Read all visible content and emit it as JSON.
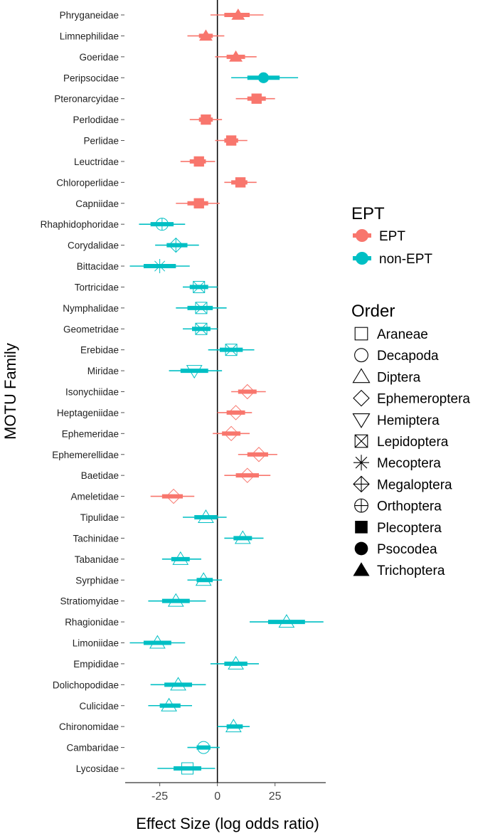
{
  "chart_data": {
    "type": "forest",
    "xlabel": "Effect Size (log odds ratio)",
    "ylabel": "MOTU Family",
    "xlim": [
      -40,
      47
    ],
    "xticks": [
      -25,
      0,
      25
    ],
    "reference_line": 0,
    "legend_position": "right",
    "legends": [
      {
        "title": "EPT",
        "entries": [
          {
            "label": "EPT",
            "color": "#F8766D"
          },
          {
            "label": "non-EPT",
            "color": "#00BFC4"
          }
        ]
      },
      {
        "title": "Order",
        "entries": [
          {
            "label": "Araneae",
            "shape": "square-open"
          },
          {
            "label": "Decapoda",
            "shape": "circle-open"
          },
          {
            "label": "Diptera",
            "shape": "triangle-open"
          },
          {
            "label": "Ephemeroptera",
            "shape": "diamond-open"
          },
          {
            "label": "Hemiptera",
            "shape": "triangle-down-open"
          },
          {
            "label": "Lepidoptera",
            "shape": "square-cross"
          },
          {
            "label": "Mecoptera",
            "shape": "asterisk"
          },
          {
            "label": "Megaloptera",
            "shape": "diamond-plus"
          },
          {
            "label": "Orthoptera",
            "shape": "circle-plus"
          },
          {
            "label": "Plecoptera",
            "shape": "square-filled"
          },
          {
            "label": "Psocodea",
            "shape": "circle-filled"
          },
          {
            "label": "Trichoptera",
            "shape": "triangle-filled"
          }
        ]
      }
    ],
    "families": [
      {
        "name": "Phryganeidae",
        "order": "Trichoptera",
        "group": "EPT",
        "est": 9,
        "lo95": -3,
        "hi95": 20,
        "lo50": 3,
        "hi50": 14
      },
      {
        "name": "Limnephilidae",
        "order": "Trichoptera",
        "group": "EPT",
        "est": -5,
        "lo95": -13,
        "hi95": 3,
        "lo50": -8,
        "hi50": -2
      },
      {
        "name": "Goeridae",
        "order": "Trichoptera",
        "group": "EPT",
        "est": 8,
        "lo95": -1,
        "hi95": 17,
        "lo50": 4,
        "hi50": 12
      },
      {
        "name": "Peripsocidae",
        "order": "Psocodea",
        "group": "non-EPT",
        "est": 20,
        "lo95": 6,
        "hi95": 35,
        "lo50": 13,
        "hi50": 27
      },
      {
        "name": "Pteronarcyidae",
        "order": "Plecoptera",
        "group": "EPT",
        "est": 17,
        "lo95": 8,
        "hi95": 25,
        "lo50": 13,
        "hi50": 21
      },
      {
        "name": "Perlodidae",
        "order": "Plecoptera",
        "group": "EPT",
        "est": -5,
        "lo95": -12,
        "hi95": 2,
        "lo50": -8,
        "hi50": -2
      },
      {
        "name": "Perlidae",
        "order": "Plecoptera",
        "group": "EPT",
        "est": 6,
        "lo95": -1,
        "hi95": 13,
        "lo50": 3,
        "hi50": 9
      },
      {
        "name": "Leuctridae",
        "order": "Plecoptera",
        "group": "EPT",
        "est": -8,
        "lo95": -16,
        "hi95": -1,
        "lo50": -12,
        "hi50": -5
      },
      {
        "name": "Chloroperlidae",
        "order": "Plecoptera",
        "group": "EPT",
        "est": 10,
        "lo95": 3,
        "hi95": 17,
        "lo50": 6,
        "hi50": 13
      },
      {
        "name": "Capniidae",
        "order": "Plecoptera",
        "group": "EPT",
        "est": -8,
        "lo95": -18,
        "hi95": 1,
        "lo50": -13,
        "hi50": -4
      },
      {
        "name": "Rhaphidophoridae",
        "order": "Orthoptera",
        "group": "non-EPT",
        "est": -24,
        "lo95": -34,
        "hi95": -14,
        "lo50": -29,
        "hi50": -19
      },
      {
        "name": "Corydalidae",
        "order": "Megaloptera",
        "group": "non-EPT",
        "est": -18,
        "lo95": -27,
        "hi95": -8,
        "lo50": -22,
        "hi50": -13
      },
      {
        "name": "Bittacidae",
        "order": "Mecoptera",
        "group": "non-EPT",
        "est": -25,
        "lo95": -38,
        "hi95": -12,
        "lo50": -32,
        "hi50": -18
      },
      {
        "name": "Tortricidae",
        "order": "Lepidoptera",
        "group": "non-EPT",
        "est": -8,
        "lo95": -15,
        "hi95": 0,
        "lo50": -12,
        "hi50": -4
      },
      {
        "name": "Nymphalidae",
        "order": "Lepidoptera",
        "group": "non-EPT",
        "est": -7,
        "lo95": -18,
        "hi95": 4,
        "lo50": -13,
        "hi50": -2
      },
      {
        "name": "Geometridae",
        "order": "Lepidoptera",
        "group": "non-EPT",
        "est": -7,
        "lo95": -15,
        "hi95": 0,
        "lo50": -11,
        "hi50": -3
      },
      {
        "name": "Erebidae",
        "order": "Lepidoptera",
        "group": "non-EPT",
        "est": 6,
        "lo95": -4,
        "hi95": 16,
        "lo50": 1,
        "hi50": 11
      },
      {
        "name": "Miridae",
        "order": "Hemiptera",
        "group": "non-EPT",
        "est": -10,
        "lo95": -21,
        "hi95": 2,
        "lo50": -16,
        "hi50": -4
      },
      {
        "name": "Isonychiidae",
        "order": "Ephemeroptera",
        "group": "EPT",
        "est": 13,
        "lo95": 6,
        "hi95": 21,
        "lo50": 9,
        "hi50": 17
      },
      {
        "name": "Heptageniidae",
        "order": "Ephemeroptera",
        "group": "EPT",
        "est": 8,
        "lo95": 0,
        "hi95": 15,
        "lo50": 4,
        "hi50": 12
      },
      {
        "name": "Ephemeridae",
        "order": "Ephemeroptera",
        "group": "EPT",
        "est": 6,
        "lo95": -2,
        "hi95": 14,
        "lo50": 2,
        "hi50": 10
      },
      {
        "name": "Ephemerellidae",
        "order": "Ephemeroptera",
        "group": "EPT",
        "est": 18,
        "lo95": 9,
        "hi95": 26,
        "lo50": 13,
        "hi50": 22
      },
      {
        "name": "Baetidae",
        "order": "Ephemeroptera",
        "group": "EPT",
        "est": 13,
        "lo95": 3,
        "hi95": 23,
        "lo50": 8,
        "hi50": 18
      },
      {
        "name": "Ameletidae",
        "order": "Ephemeroptera",
        "group": "EPT",
        "est": -19,
        "lo95": -29,
        "hi95": -10,
        "lo50": -24,
        "hi50": -15
      },
      {
        "name": "Tipulidae",
        "order": "Diptera",
        "group": "non-EPT",
        "est": -5,
        "lo95": -15,
        "hi95": 4,
        "lo50": -10,
        "hi50": 0
      },
      {
        "name": "Tachinidae",
        "order": "Diptera",
        "group": "non-EPT",
        "est": 11,
        "lo95": 3,
        "hi95": 20,
        "lo50": 7,
        "hi50": 15
      },
      {
        "name": "Tabanidae",
        "order": "Diptera",
        "group": "non-EPT",
        "est": -16,
        "lo95": -24,
        "hi95": -7,
        "lo50": -20,
        "hi50": -12
      },
      {
        "name": "Syrphidae",
        "order": "Diptera",
        "group": "non-EPT",
        "est": -6,
        "lo95": -13,
        "hi95": 2,
        "lo50": -9,
        "hi50": -2
      },
      {
        "name": "Stratiomyidae",
        "order": "Diptera",
        "group": "non-EPT",
        "est": -18,
        "lo95": -30,
        "hi95": -5,
        "lo50": -24,
        "hi50": -12
      },
      {
        "name": "Rhagionidae",
        "order": "Diptera",
        "group": "non-EPT",
        "est": 30,
        "lo95": 14,
        "hi95": 46,
        "lo50": 22,
        "hi50": 38
      },
      {
        "name": "Limoniidae",
        "order": "Diptera",
        "group": "non-EPT",
        "est": -26,
        "lo95": -38,
        "hi95": -14,
        "lo50": -32,
        "hi50": -20
      },
      {
        "name": "Empididae",
        "order": "Diptera",
        "group": "non-EPT",
        "est": 8,
        "lo95": -3,
        "hi95": 18,
        "lo50": 3,
        "hi50": 13
      },
      {
        "name": "Dolichopodidae",
        "order": "Diptera",
        "group": "non-EPT",
        "est": -17,
        "lo95": -29,
        "hi95": -5,
        "lo50": -23,
        "hi50": -11
      },
      {
        "name": "Culicidae",
        "order": "Diptera",
        "group": "non-EPT",
        "est": -21,
        "lo95": -30,
        "hi95": -11,
        "lo50": -25,
        "hi50": -16
      },
      {
        "name": "Chironomidae",
        "order": "Diptera",
        "group": "non-EPT",
        "est": 7,
        "lo95": 0,
        "hi95": 14,
        "lo50": 4,
        "hi50": 11
      },
      {
        "name": "Cambaridae",
        "order": "Decapoda",
        "group": "non-EPT",
        "est": -6,
        "lo95": -13,
        "hi95": 1,
        "lo50": -9,
        "hi50": -3
      },
      {
        "name": "Lycosidae",
        "order": "Araneae",
        "group": "non-EPT",
        "est": -13,
        "lo95": -26,
        "hi95": -1,
        "lo50": -19,
        "hi50": -7
      }
    ]
  }
}
